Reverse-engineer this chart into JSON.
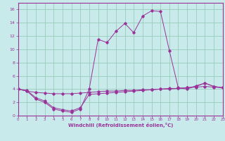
{
  "title": "",
  "xlabel": "Windchill (Refroidissement éolien,°C)",
  "ylabel": "",
  "bg_color": "#c8eaea",
  "line_color": "#993399",
  "grid_color": "#99ccbb",
  "x_ticks": [
    0,
    1,
    2,
    3,
    4,
    5,
    6,
    7,
    8,
    9,
    10,
    11,
    12,
    13,
    14,
    15,
    16,
    17,
    18,
    19,
    20,
    21,
    22,
    23
  ],
  "y_ticks": [
    0,
    2,
    4,
    6,
    8,
    10,
    12,
    14,
    16
  ],
  "xlim": [
    0,
    23
  ],
  "ylim": [
    0,
    17
  ],
  "line1_x": [
    0,
    1,
    2,
    3,
    4,
    5,
    6,
    7,
    8,
    9,
    10,
    11,
    12,
    13,
    14,
    15,
    16,
    17,
    18,
    19,
    20,
    21,
    22,
    23
  ],
  "line1_y": [
    4.0,
    3.7,
    2.5,
    2.0,
    1.0,
    0.7,
    0.5,
    1.0,
    4.0,
    11.5,
    11.0,
    12.7,
    13.9,
    12.5,
    15.0,
    15.8,
    15.7,
    9.8,
    4.2,
    4.0,
    4.5,
    4.9,
    4.4,
    4.2
  ],
  "line2_x": [
    0,
    1,
    2,
    3,
    4,
    5,
    6,
    7,
    8,
    9,
    10,
    11,
    12,
    13,
    14,
    15,
    16,
    17,
    18,
    19,
    20,
    21,
    22,
    23
  ],
  "line2_y": [
    4.0,
    3.8,
    2.7,
    2.2,
    1.2,
    0.9,
    0.7,
    1.2,
    3.2,
    3.3,
    3.4,
    3.5,
    3.6,
    3.7,
    3.8,
    3.9,
    4.0,
    4.1,
    4.1,
    4.2,
    4.4,
    4.9,
    4.4,
    4.2
  ],
  "line3_x": [
    0,
    1,
    2,
    3,
    4,
    5,
    6,
    7,
    8,
    9,
    10,
    11,
    12,
    13,
    14,
    15,
    16,
    17,
    18,
    19,
    20,
    21,
    22,
    23
  ],
  "line3_y": [
    4.0,
    3.7,
    3.5,
    3.4,
    3.3,
    3.3,
    3.3,
    3.4,
    3.5,
    3.6,
    3.7,
    3.7,
    3.8,
    3.8,
    3.9,
    3.9,
    4.0,
    4.0,
    4.1,
    4.2,
    4.3,
    4.4,
    4.3,
    4.2
  ],
  "marker": "D",
  "markersize": 1.8,
  "linewidth": 0.7
}
